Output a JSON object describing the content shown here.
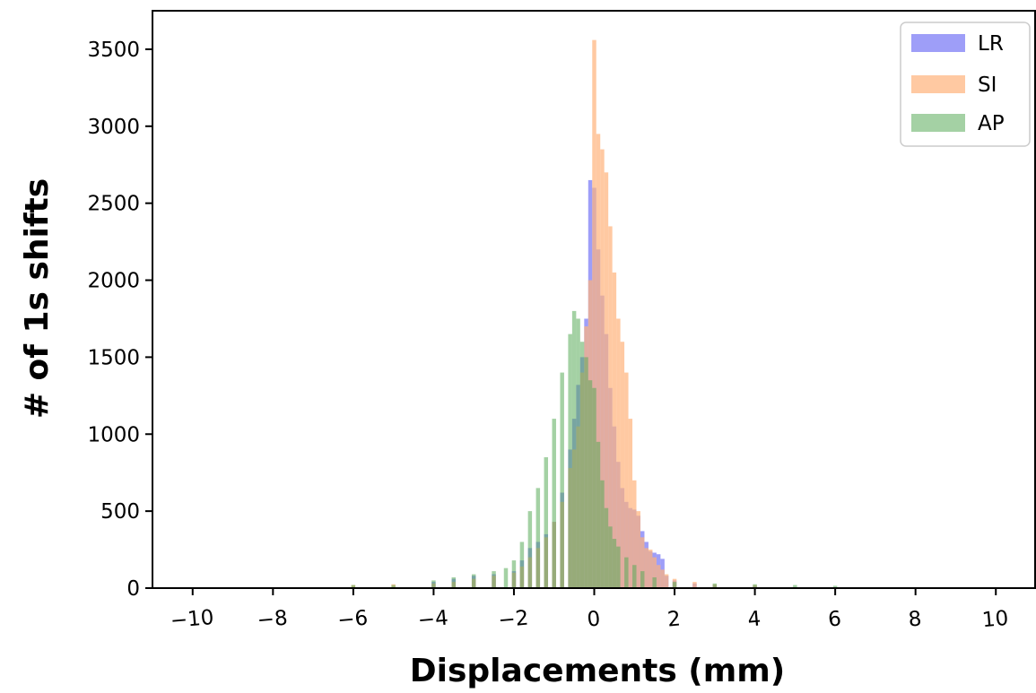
{
  "chart_data": {
    "type": "histogram",
    "title": "",
    "xlabel": "Displacements (mm)",
    "ylabel": "# of 1s shifts",
    "xlim": [
      -11,
      11
    ],
    "ylim": [
      0,
      3750
    ],
    "x_ticks": [
      -10,
      -8,
      -6,
      -4,
      -2,
      0,
      2,
      4,
      6,
      8,
      10
    ],
    "x_tick_labels": [
      "−10",
      "−8",
      "−6",
      "−4",
      "−2",
      "0",
      "2",
      "4",
      "6",
      "8",
      "10"
    ],
    "y_ticks": [
      0,
      500,
      1000,
      1500,
      2000,
      2500,
      3000,
      3500
    ],
    "y_tick_labels": [
      "0",
      "500",
      "1000",
      "1500",
      "2000",
      "2500",
      "3000",
      "3500"
    ],
    "grid": false,
    "legend_position": "top-right",
    "bin_width": 0.1,
    "series": [
      {
        "name": "LR",
        "color": "#6a6af5",
        "opacity": 0.65,
        "bin_centers": [
          -4.0,
          -3.5,
          -3.0,
          -2.5,
          -2.0,
          -1.8,
          -1.6,
          -1.4,
          -1.2,
          -1.0,
          -0.8,
          -0.6,
          -0.5,
          -0.4,
          -0.3,
          -0.2,
          -0.1,
          0.0,
          0.1,
          0.2,
          0.3,
          0.4,
          0.5,
          0.6,
          0.7,
          0.8,
          0.9,
          1.0,
          1.1,
          1.2,
          1.3,
          1.4,
          1.5,
          1.6,
          1.7,
          1.8,
          2.0,
          2.5,
          3.0,
          4.0
        ],
        "counts": [
          40,
          60,
          80,
          90,
          110,
          180,
          260,
          300,
          350,
          430,
          620,
          900,
          1100,
          1320,
          1500,
          1750,
          2650,
          2600,
          2200,
          1900,
          1650,
          1300,
          1050,
          820,
          650,
          560,
          520,
          510,
          470,
          370,
          300,
          240,
          230,
          220,
          190,
          80,
          50,
          30,
          20,
          15
        ]
      },
      {
        "name": "SI",
        "color": "#ffb27a",
        "opacity": 0.7,
        "bin_centers": [
          -6.0,
          -5.0,
          -4.0,
          -3.5,
          -3.0,
          -2.5,
          -2.0,
          -1.8,
          -1.6,
          -1.4,
          -1.2,
          -1.0,
          -0.8,
          -0.6,
          -0.5,
          -0.4,
          -0.3,
          -0.2,
          -0.1,
          0.0,
          0.1,
          0.2,
          0.3,
          0.4,
          0.5,
          0.6,
          0.7,
          0.8,
          0.9,
          1.0,
          1.1,
          1.2,
          1.3,
          1.4,
          1.5,
          1.6,
          1.7,
          1.8,
          2.0,
          2.5,
          3.0,
          4.0
        ],
        "counts": [
          20,
          25,
          30,
          40,
          60,
          80,
          100,
          140,
          200,
          260,
          330,
          430,
          560,
          780,
          900,
          1050,
          1400,
          1700,
          2000,
          3560,
          2950,
          2850,
          2700,
          2350,
          2050,
          1750,
          1600,
          1400,
          1100,
          700,
          500,
          330,
          260,
          250,
          200,
          150,
          120,
          90,
          60,
          40,
          25,
          20
        ]
      },
      {
        "name": "AP",
        "color": "#5aab5a",
        "opacity": 0.55,
        "bin_centers": [
          -6.0,
          -5.0,
          -4.0,
          -3.5,
          -3.0,
          -2.5,
          -2.2,
          -2.0,
          -1.8,
          -1.6,
          -1.4,
          -1.2,
          -1.0,
          -0.8,
          -0.6,
          -0.5,
          -0.4,
          -0.3,
          -0.2,
          -0.1,
          0.0,
          0.1,
          0.2,
          0.3,
          0.4,
          0.5,
          0.6,
          0.8,
          1.0,
          1.2,
          1.5,
          2.0,
          3.0,
          4.0,
          5.0,
          6.0
        ],
        "counts": [
          20,
          20,
          50,
          70,
          90,
          110,
          130,
          180,
          300,
          500,
          650,
          850,
          1100,
          1400,
          1650,
          1800,
          1750,
          1600,
          1500,
          1350,
          1300,
          950,
          700,
          520,
          400,
          320,
          270,
          200,
          150,
          110,
          70,
          40,
          30,
          25,
          20,
          15
        ]
      }
    ]
  }
}
